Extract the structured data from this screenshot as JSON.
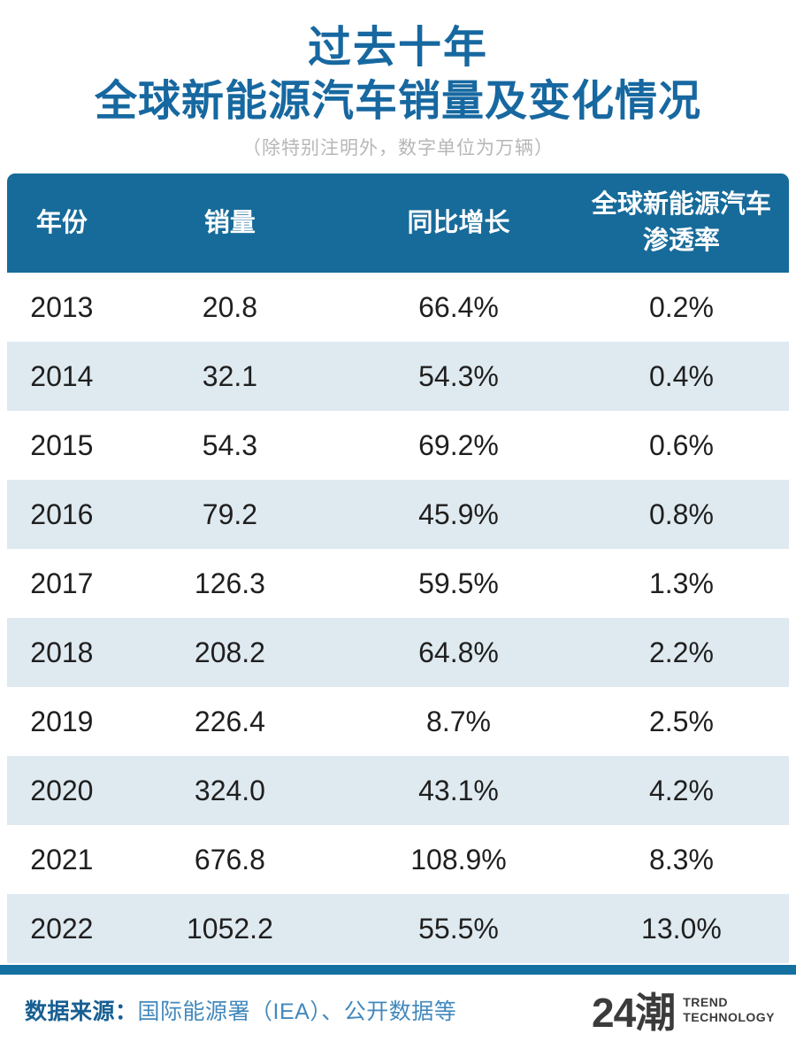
{
  "title": {
    "line1": "过去十年",
    "line2": "全球新能源汽车销量及变化情况",
    "subtitle": "（除特别注明外，数字单位为万辆）"
  },
  "table": {
    "headers": [
      {
        "line1": "年份"
      },
      {
        "line1": "销量"
      },
      {
        "line1": "同比增长"
      },
      {
        "line1": "全球新能源汽车",
        "line2": "渗透率"
      }
    ]
  },
  "chart_data": {
    "type": "table",
    "title": "过去十年全球新能源汽车销量及变化情况",
    "unit_note": "除特别注明外，数字单位为万辆",
    "columns": [
      "年份",
      "销量",
      "同比增长",
      "全球新能源汽车渗透率"
    ],
    "rows": [
      [
        "2013",
        "20.8",
        "66.4%",
        "0.2%"
      ],
      [
        "2014",
        "32.1",
        "54.3%",
        "0.4%"
      ],
      [
        "2015",
        "54.3",
        "69.2%",
        "0.6%"
      ],
      [
        "2016",
        "79.2",
        "45.9%",
        "0.8%"
      ],
      [
        "2017",
        "126.3",
        "59.5%",
        "1.3%"
      ],
      [
        "2018",
        "208.2",
        "64.8%",
        "2.2%"
      ],
      [
        "2019",
        "226.4",
        "8.7%",
        "2.5%"
      ],
      [
        "2020",
        "324.0",
        "43.1%",
        "4.2%"
      ],
      [
        "2021",
        "676.8",
        "108.9%",
        "8.3%"
      ],
      [
        "2022",
        "1052.2",
        "55.5%",
        "13.0%"
      ]
    ]
  },
  "footer": {
    "source_label": "数据来源：",
    "source_text": "国际能源署（IEA）、公开数据等",
    "logo_text": "24潮",
    "logo_sub_line1": "TREND",
    "logo_sub_line2": "TECHNOLOGY"
  },
  "colors": {
    "title_blue": "#1768a0",
    "header_bg": "#176b9a",
    "alt_row_bg": "#dfe9f0",
    "bottom_bar": "#1470a1",
    "source_label": "#175f92",
    "source_text": "#4389bd",
    "logo_gray": "#3b3b3b",
    "subtitle_gray": "#b7b7b7",
    "data_text": "#1f1f1f"
  }
}
